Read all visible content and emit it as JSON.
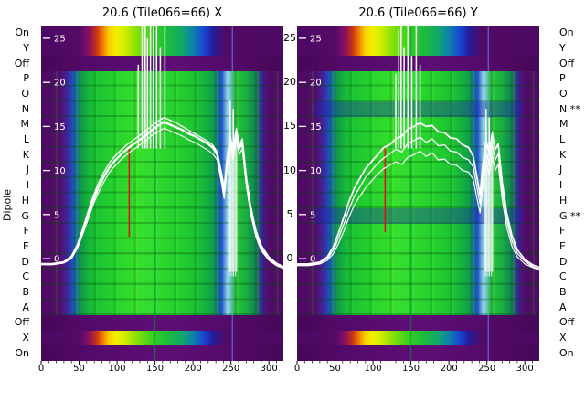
{
  "chart_data": {
    "type": "heatmap",
    "title_left": "20.6 (Tile066=66) X",
    "title_right": "20.6 (Tile066=66) Y",
    "xlabel": "",
    "ylabel": "Dipole",
    "x_range": [
      0,
      319
    ],
    "x_ticks": [
      0,
      50,
      100,
      150,
      200,
      250,
      300
    ],
    "overlay_scale_ticks": [
      25,
      20,
      15,
      10,
      5,
      0
    ],
    "rows": [
      "On",
      "Y",
      "Off",
      "P",
      "O",
      "N",
      "M",
      "L",
      "K",
      "J",
      "I",
      "H",
      "G",
      "F",
      "E",
      "D",
      "C",
      "B",
      "A",
      "Off",
      "X",
      "On"
    ],
    "rows_right": [
      "On",
      "Y",
      "Off",
      "P",
      "O",
      "N **",
      "M",
      "L",
      "K",
      "J",
      "I",
      "H",
      "G **",
      "F",
      "E",
      "D",
      "C",
      "B",
      "A",
      "Off",
      "X",
      "On"
    ],
    "bands": [
      {
        "kind": "rainbow",
        "rows": 2,
        "label": "On/Y reference"
      },
      {
        "kind": "purple",
        "rows": 1,
        "label": "Off"
      },
      {
        "kind": "green",
        "rows": 16,
        "label": "Dipoles P-A"
      },
      {
        "kind": "purple",
        "rows": 1,
        "label": "Off"
      },
      {
        "kind": "rainbow",
        "rows": 1,
        "label": "X reference"
      },
      {
        "kind": "purple",
        "rows": 1,
        "label": "On"
      }
    ],
    "vlines": [
      {
        "x": 150,
        "color": "rgba(0,150,60,0.55)",
        "w": 1.4
      },
      {
        "x": 252,
        "color": "rgba(90,150,255,0.6)",
        "w": 1.4
      }
    ],
    "noise_band": {
      "x1": 246,
      "x2": 258,
      "v1": -1.5,
      "v2": 12
    },
    "series_x": [
      0,
      15,
      30,
      40,
      48,
      55,
      62,
      68,
      75,
      82,
      90,
      98,
      106,
      114,
      122,
      130,
      138,
      146,
      154,
      162,
      170,
      178,
      186,
      194,
      202,
      210,
      218,
      226,
      232,
      237,
      241,
      245,
      249,
      253,
      257,
      261,
      265,
      270,
      276,
      283,
      290,
      300,
      310,
      319
    ],
    "panels": [
      {
        "id": "X",
        "flagged_rows": [],
        "series": [
          {
            "name": "curve1",
            "width": 2.4,
            "values": [
              -0.6,
              -0.6,
              -0.4,
              0.2,
              1.5,
              3.2,
              5.0,
              6.5,
              8.0,
              9.2,
              10.4,
              11.2,
              11.9,
              12.5,
              13.0,
              13.5,
              14.0,
              14.6,
              15.1,
              15.5,
              15.2,
              14.9,
              14.6,
              14.2,
              13.9,
              13.5,
              13.1,
              12.6,
              11.8,
              9.5,
              7.5,
              11.0,
              13.5,
              12.0,
              14.3,
              12.5,
              13.2,
              9.0,
              5.5,
              2.8,
              1.2,
              0.0,
              -0.6,
              -1.0
            ]
          },
          {
            "name": "curve2",
            "width": 1.3,
            "values": [
              -0.6,
              -0.6,
              -0.4,
              0.3,
              1.7,
              3.5,
              5.4,
              7.0,
              8.5,
              9.7,
              10.9,
              11.7,
              12.4,
              13.0,
              13.5,
              14.0,
              14.5,
              15.1,
              15.6,
              16.0,
              15.7,
              15.4,
              15.0,
              14.6,
              14.2,
              13.8,
              13.4,
              12.9,
              12.1,
              10.0,
              8.2,
              11.5,
              13.9,
              12.5,
              14.8,
              13.0,
              13.6,
              9.5,
              6.0,
              3.2,
              1.5,
              0.2,
              -0.5,
              -0.9
            ]
          },
          {
            "name": "curve3",
            "width": 1.2,
            "values": [
              -0.7,
              -0.7,
              -0.5,
              0.0,
              1.2,
              2.8,
              4.5,
              6.0,
              7.4,
              8.6,
              9.8,
              10.6,
              11.3,
              11.9,
              12.4,
              12.9,
              13.4,
              14.0,
              14.4,
              14.8,
              14.5,
              14.2,
              13.9,
              13.5,
              13.2,
              12.8,
              12.4,
              11.9,
              11.2,
              8.8,
              6.8,
              10.2,
              12.8,
              11.2,
              13.5,
              11.8,
              12.5,
              8.4,
              5.0,
              2.4,
              0.9,
              -0.2,
              -0.8,
              -1.1
            ]
          }
        ],
        "spikes": [
          [
            128,
            22
          ],
          [
            133,
            27
          ],
          [
            137,
            31
          ],
          [
            140,
            25
          ],
          [
            144,
            30
          ],
          [
            148,
            27
          ],
          [
            152,
            31
          ],
          [
            157,
            24
          ],
          [
            163,
            28
          ],
          [
            249,
            18
          ],
          [
            253,
            17
          ]
        ],
        "red_marker": {
          "x": 116,
          "v1": 2.5,
          "v2": 12.8
        }
      },
      {
        "id": "Y",
        "flagged_rows": [
          "N",
          "G"
        ],
        "series": [
          {
            "name": "curve1",
            "width": 1.8,
            "values": [
              -0.6,
              -0.6,
              -0.4,
              0.2,
              1.4,
              3.0,
              4.8,
              6.4,
              7.9,
              9.0,
              10.2,
              11.0,
              11.8,
              12.6,
              12.9,
              13.6,
              13.9,
              14.7,
              15.0,
              15.4,
              15.0,
              15.1,
              14.4,
              14.3,
              13.7,
              13.6,
              12.9,
              12.6,
              11.6,
              9.2,
              7.2,
              10.8,
              13.4,
              11.8,
              14.2,
              12.4,
              13.0,
              8.8,
              5.2,
              2.6,
              1.0,
              -0.1,
              -0.7,
              -1.0
            ]
          },
          {
            "name": "curve2",
            "width": 1.3,
            "values": [
              -0.7,
              -0.7,
              -0.5,
              0.0,
              1.0,
              2.4,
              4.0,
              5.5,
              7.0,
              8.0,
              9.2,
              10.0,
              10.8,
              11.4,
              11.9,
              12.4,
              12.1,
              13.1,
              13.4,
              13.8,
              13.2,
              13.6,
              12.8,
              12.9,
              12.2,
              12.1,
              11.5,
              11.2,
              10.4,
              8.0,
              6.2,
              9.6,
              12.2,
              10.6,
              13.0,
              11.2,
              11.9,
              7.8,
              4.4,
              2.0,
              0.6,
              -0.3,
              -0.9,
              -1.2
            ]
          },
          {
            "name": "curve3",
            "width": 1.2,
            "values": [
              -0.8,
              -0.8,
              -0.6,
              -0.2,
              0.6,
              1.8,
              3.2,
              4.6,
              6.0,
              7.0,
              8.0,
              8.8,
              9.6,
              10.2,
              10.6,
              11.0,
              10.7,
              11.5,
              11.8,
              12.2,
              11.6,
              12.0,
              11.2,
              11.3,
              10.7,
              10.6,
              10.0,
              9.8,
              9.0,
              6.8,
              5.2,
              8.4,
              11.0,
              9.4,
              11.8,
              10.0,
              10.7,
              6.8,
              3.6,
              1.4,
              0.2,
              -0.6,
              -1.0,
              -1.3
            ]
          }
        ],
        "spikes": [
          [
            130,
            21
          ],
          [
            134,
            26
          ],
          [
            137,
            31
          ],
          [
            141,
            24
          ],
          [
            146,
            30
          ],
          [
            151,
            23
          ],
          [
            157,
            27
          ],
          [
            162,
            22
          ],
          [
            249,
            17
          ],
          [
            253,
            16
          ]
        ],
        "red_marker": {
          "x": 116,
          "v1": 3.0,
          "v2": 12.5
        }
      }
    ],
    "colors": {
      "purple": "#530a68",
      "green": "#2bd62c",
      "yellow": "#f4ef00",
      "blue": "#1748d2",
      "curve": "#ffffff",
      "marker": "#e01010"
    }
  }
}
